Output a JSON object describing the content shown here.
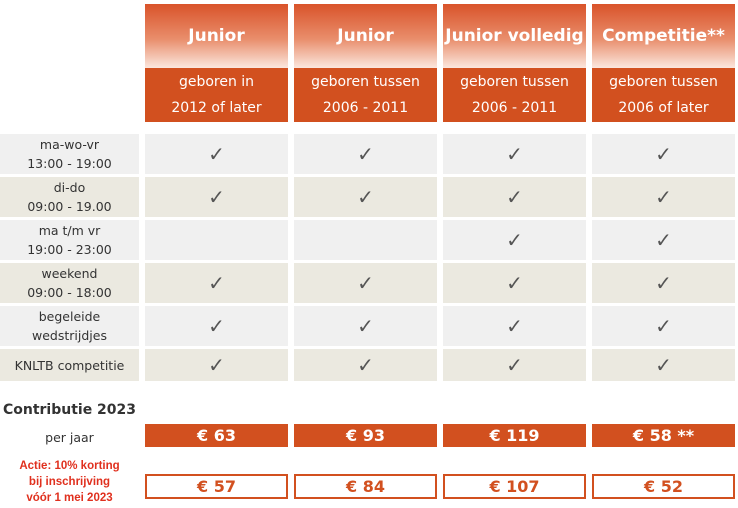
{
  "columns": [
    {
      "title": "Junior",
      "sub1": "geboren in",
      "sub2": "2012 of later"
    },
    {
      "title": "Junior",
      "sub1": "geboren tussen",
      "sub2": "2006 - 2011"
    },
    {
      "title": "Junior volledig",
      "sub1": "geboren tussen",
      "sub2": "2006 - 2011"
    },
    {
      "title": "Competitie**",
      "sub1": "geboren tussen",
      "sub2": "2006 of later"
    }
  ],
  "rows": [
    {
      "line1": "ma-wo-vr",
      "line2": "13:00 - 19:00",
      "checks": [
        true,
        true,
        true,
        true
      ]
    },
    {
      "line1": "di-do",
      "line2": "09:00 - 19.00",
      "checks": [
        true,
        true,
        true,
        true
      ]
    },
    {
      "line1": "ma t/m vr",
      "line2": "19:00 - 23:00",
      "checks": [
        false,
        false,
        true,
        true
      ]
    },
    {
      "line1": "weekend",
      "line2": "09:00 - 18:00",
      "checks": [
        true,
        true,
        true,
        true
      ]
    },
    {
      "line1": "begeleide",
      "line2": "wedstrijdjes",
      "checks": [
        true,
        true,
        true,
        true
      ]
    },
    {
      "line1": "KNLTB competitie",
      "line2": "",
      "checks": [
        true,
        true,
        true,
        true
      ]
    }
  ],
  "check_glyph": "✓",
  "contributie": {
    "title": "Contributie 2023",
    "per_year_label": "per jaar",
    "prices": [
      "€ 63",
      "€ 93",
      "€ 119",
      "€ 58 **"
    ]
  },
  "promo": {
    "line1": "Actie: 10% korting",
    "line2": "bij inschrijving",
    "line3": "vóór 1 mei 2023",
    "prices": [
      "€ 57",
      "€ 84",
      "€ 107",
      "€ 52"
    ]
  },
  "colors": {
    "accent": "#d2501f",
    "promo_text": "#e0301e",
    "row_shade_a": "#f0f0f0",
    "row_shade_b": "#ebe9e0"
  }
}
